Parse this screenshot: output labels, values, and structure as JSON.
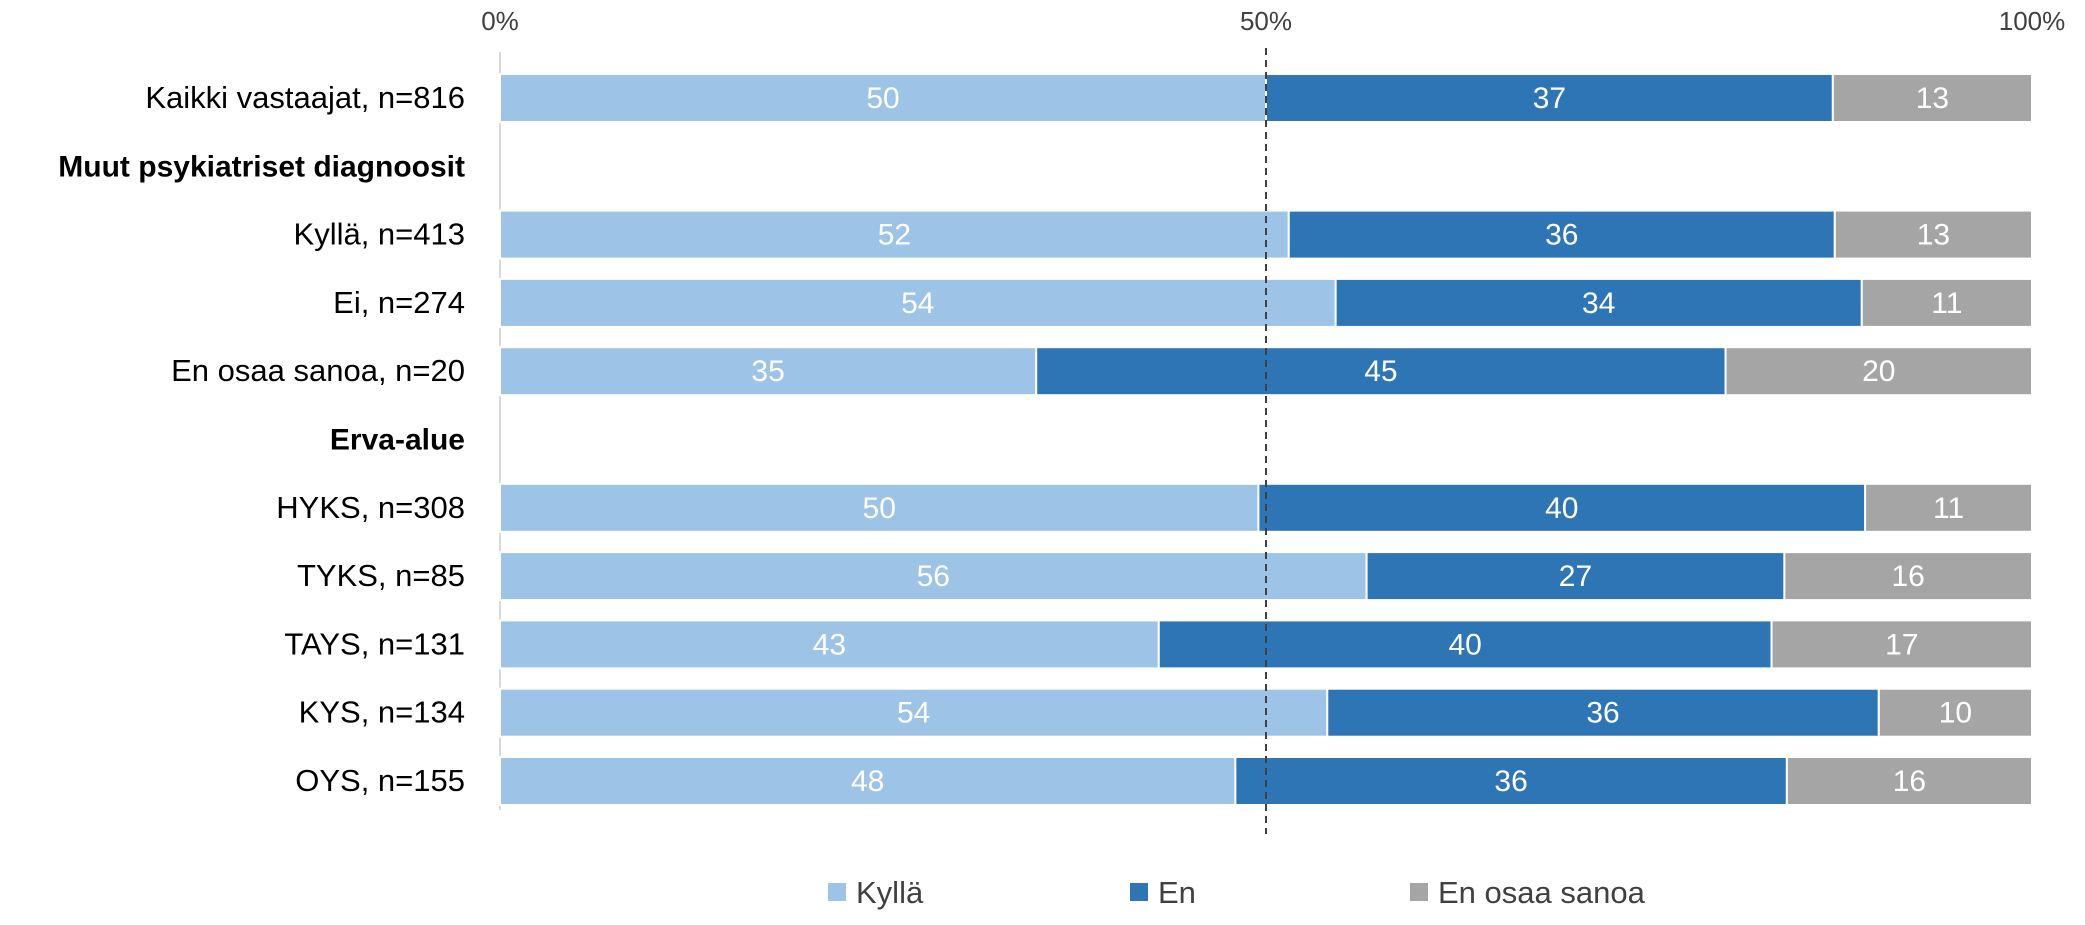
{
  "chart_data": {
    "type": "bar",
    "orientation": "horizontal",
    "stacked": true,
    "percent_stacked": true,
    "xlim": [
      0,
      100
    ],
    "x_ticks": [
      "0%",
      "50%",
      "100%"
    ],
    "reference_line": {
      "value": 50,
      "style": "dashed"
    },
    "legend_position": "bottom",
    "grid": false,
    "series": [
      {
        "name": "Kyllä",
        "color": "#9DC3E6"
      },
      {
        "name": "En",
        "color": "#2E75B6"
      },
      {
        "name": "En osaa sanoa",
        "color": "#A5A5A5"
      }
    ],
    "rows": [
      {
        "label": "Kaikki vastaajat, n=816",
        "heading": false,
        "values": [
          50,
          37,
          13
        ]
      },
      {
        "label": "Muut psykiatriset diagnoosit",
        "heading": true
      },
      {
        "label": "Kyllä, n=413",
        "heading": false,
        "values": [
          52,
          36,
          13
        ]
      },
      {
        "label": "Ei, n=274",
        "heading": false,
        "values": [
          54,
          34,
          11
        ]
      },
      {
        "label": "En osaa sanoa, n=20",
        "heading": false,
        "values": [
          35,
          45,
          20
        ]
      },
      {
        "label": "Erva-alue",
        "heading": true
      },
      {
        "label": "HYKS, n=308",
        "heading": false,
        "values": [
          50,
          40,
          11
        ]
      },
      {
        "label": "TYKS, n=85",
        "heading": false,
        "values": [
          56,
          27,
          16
        ]
      },
      {
        "label": "TAYS, n=131",
        "heading": false,
        "values": [
          43,
          40,
          17
        ]
      },
      {
        "label": "KYS, n=134",
        "heading": false,
        "values": [
          54,
          36,
          10
        ]
      },
      {
        "label": "OYS, n=155",
        "heading": false,
        "values": [
          48,
          36,
          16
        ]
      }
    ]
  }
}
